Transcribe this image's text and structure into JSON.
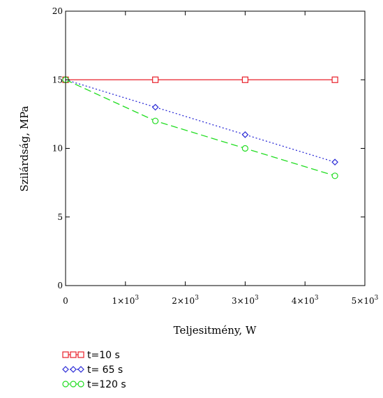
{
  "chart_data": {
    "type": "line",
    "xlabel": "Teljesitmény, W",
    "ylabel": "Szilárdság, MPa",
    "xlim": [
      0,
      5000
    ],
    "ylim": [
      0,
      20
    ],
    "x_ticks": [
      {
        "value": 0,
        "mantissa": "0",
        "exp": ""
      },
      {
        "value": 1000,
        "mantissa": "1×10",
        "exp": "3"
      },
      {
        "value": 2000,
        "mantissa": "2×10",
        "exp": "3"
      },
      {
        "value": 3000,
        "mantissa": "3×10",
        "exp": "3"
      },
      {
        "value": 4000,
        "mantissa": "4×10",
        "exp": "3"
      },
      {
        "value": 5000,
        "mantissa": "5×10",
        "exp": "3"
      }
    ],
    "y_ticks": [
      {
        "value": 0,
        "label": "0"
      },
      {
        "value": 5,
        "label": "5"
      },
      {
        "value": 10,
        "label": "10"
      },
      {
        "value": 15,
        "label": "15"
      },
      {
        "value": 20,
        "label": "20"
      }
    ],
    "grid": false,
    "legend_position": "bottom-left",
    "x": [
      0,
      1500,
      3000,
      4500
    ],
    "series": [
      {
        "name": "t=10 s",
        "values": [
          15,
          15,
          15,
          15
        ],
        "color": "#e8202a",
        "marker": "square",
        "line": "solid"
      },
      {
        "name": "t= 65 s",
        "values": [
          15,
          13,
          11,
          9
        ],
        "color": "#2b2bd6",
        "marker": "diamond",
        "line": "dotted"
      },
      {
        "name": "t=120 s",
        "values": [
          15,
          12,
          10,
          8
        ],
        "color": "#22dd22",
        "marker": "circle",
        "line": "dashed"
      }
    ]
  }
}
